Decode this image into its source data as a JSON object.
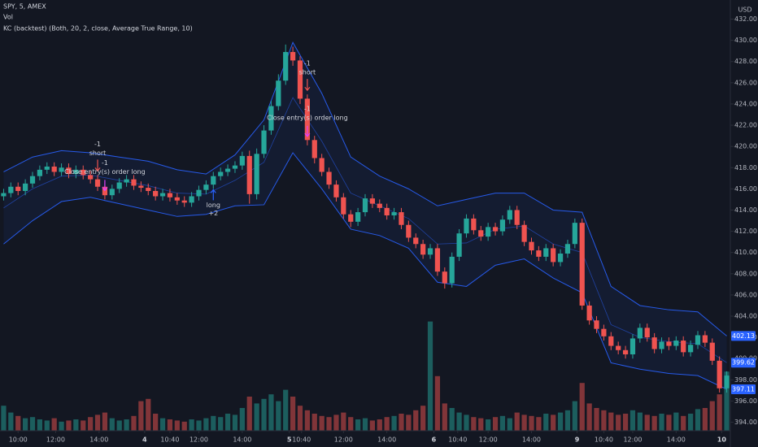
{
  "header": {
    "symbol": "SPY, 5, AMEX",
    "volume_label": "Vol",
    "indicator": "KC (backtest) (Both, 20, 2, close, Average True Range, 10)"
  },
  "chart_data": {
    "type": "candlestick",
    "currency": "USD",
    "up_color": "#26a69a",
    "down_color": "#ef5350",
    "grid": false,
    "xlim": [
      -0.5,
      100.5
    ],
    "ylim": [
      393.2,
      433.8
    ],
    "volume_lim": [
      0,
      10
    ],
    "yticks": [
      {
        "value": 394,
        "label": "394.00"
      },
      {
        "value": 396,
        "label": "396.00"
      },
      {
        "value": 398,
        "label": "398.00"
      },
      {
        "value": 400,
        "label": "400.00"
      },
      {
        "value": 402,
        "label": "402.00"
      },
      {
        "value": 404,
        "label": "404.00"
      },
      {
        "value": 406,
        "label": "406.00"
      },
      {
        "value": 408,
        "label": "408.00"
      },
      {
        "value": 410,
        "label": "410.00"
      },
      {
        "value": 412,
        "label": "412.00"
      },
      {
        "value": 414,
        "label": "414.00"
      },
      {
        "value": 416,
        "label": "416.00"
      },
      {
        "value": 418,
        "label": "418.00"
      },
      {
        "value": 420,
        "label": "420.00"
      },
      {
        "value": 422,
        "label": "422.00"
      },
      {
        "value": 424,
        "label": "424.00"
      },
      {
        "value": 426,
        "label": "426.00"
      },
      {
        "value": 428,
        "label": "428.00"
      },
      {
        "value": 430,
        "label": "430.00"
      },
      {
        "value": 432,
        "label": "432.00"
      }
    ],
    "xticks": [
      {
        "value": 2,
        "label": "10:00"
      },
      {
        "value": 7.2,
        "label": "12:00"
      },
      {
        "value": 13.2,
        "label": "14:00"
      },
      {
        "value": 19.5,
        "label": "4"
      },
      {
        "value": 23,
        "label": "10:40"
      },
      {
        "value": 27,
        "label": "12:00"
      },
      {
        "value": 33,
        "label": "14:00"
      },
      {
        "value": 39.5,
        "label": "5"
      },
      {
        "value": 41.2,
        "label": "10:40"
      },
      {
        "value": 47,
        "label": "12:00"
      },
      {
        "value": 53,
        "label": "14:00"
      },
      {
        "value": 59.5,
        "label": "6"
      },
      {
        "value": 62.8,
        "label": "10:40"
      },
      {
        "value": 67,
        "label": "12:00"
      },
      {
        "value": 73,
        "label": "14:00"
      },
      {
        "value": 79.3,
        "label": "9"
      },
      {
        "value": 83,
        "label": "10:40"
      },
      {
        "value": 87,
        "label": "12:00"
      },
      {
        "value": 93,
        "label": "14:00"
      },
      {
        "value": 99.3,
        "label": "10"
      }
    ],
    "open": [
      415.3,
      415.6,
      416.2,
      415.8,
      416.5,
      417.2,
      417.8,
      418.1,
      417.6,
      418.0,
      417.4,
      417.8,
      417.3,
      416.9,
      416.2,
      415.4,
      416.0,
      416.6,
      416.9,
      416.3,
      416.1,
      415.8,
      415.3,
      415.6,
      415.2,
      414.9,
      414.7,
      415.3,
      415.9,
      416.4,
      417.2,
      417.6,
      417.9,
      418.2,
      419.1,
      415.5,
      419.3,
      421.5,
      423.8,
      426.2,
      428.9,
      428.1,
      424.5,
      420.6,
      418.9,
      417.6,
      416.4,
      415.2,
      413.6,
      412.9,
      413.8,
      415.1,
      414.6,
      414.2,
      413.5,
      413.8,
      412.6,
      411.4,
      410.8,
      409.8,
      410.4,
      408.2,
      407.1,
      409.6,
      411.8,
      413.2,
      412.1,
      411.5,
      412.4,
      412.0,
      413.1,
      414.0,
      412.6,
      411.0,
      410.2,
      409.6,
      410.4,
      409.1,
      409.9,
      410.8,
      412.8,
      405.0,
      403.6,
      402.8,
      402.1,
      401.2,
      400.8,
      400.4,
      401.9,
      402.9,
      402.0,
      400.9,
      401.6,
      401.2,
      401.7,
      400.6,
      401.3,
      402.2,
      401.5,
      399.8,
      397.2
    ],
    "high": [
      416.0,
      416.6,
      416.6,
      416.9,
      417.6,
      418.2,
      418.5,
      418.5,
      418.4,
      418.4,
      418.2,
      418.2,
      417.7,
      417.3,
      416.6,
      416.4,
      417.0,
      417.3,
      417.3,
      416.7,
      416.5,
      416.2,
      416.0,
      416.0,
      415.6,
      415.3,
      415.7,
      416.3,
      416.8,
      417.6,
      418.0,
      418.3,
      418.6,
      419.5,
      419.6,
      419.8,
      422.0,
      424.3,
      426.8,
      429.6,
      429.4,
      428.5,
      424.9,
      421.0,
      419.3,
      418.0,
      416.8,
      415.6,
      414.0,
      414.2,
      415.5,
      415.5,
      415.0,
      414.6,
      414.2,
      414.2,
      413.0,
      411.8,
      411.2,
      410.8,
      410.8,
      408.6,
      410.0,
      412.2,
      413.6,
      413.6,
      412.5,
      412.8,
      412.8,
      413.5,
      414.4,
      414.4,
      413.0,
      411.4,
      410.6,
      410.8,
      410.8,
      410.3,
      411.2,
      413.2,
      413.2,
      405.4,
      404.0,
      403.2,
      402.5,
      401.6,
      401.2,
      402.3,
      403.3,
      403.3,
      402.4,
      402.0,
      402.0,
      402.1,
      402.1,
      401.7,
      402.6,
      402.6,
      401.9,
      400.2,
      398.8
    ],
    "low": [
      414.9,
      415.2,
      415.4,
      415.4,
      416.1,
      416.8,
      417.4,
      417.2,
      417.2,
      417.0,
      417.0,
      416.9,
      416.5,
      415.8,
      415.0,
      415.0,
      415.6,
      416.2,
      415.9,
      415.7,
      415.4,
      414.9,
      414.9,
      414.8,
      414.5,
      414.3,
      414.3,
      414.9,
      415.5,
      416.0,
      416.8,
      417.2,
      417.5,
      417.8,
      414.6,
      415.0,
      418.9,
      421.1,
      423.4,
      425.8,
      427.6,
      424.0,
      420.1,
      418.4,
      417.2,
      416.0,
      414.8,
      413.2,
      412.4,
      412.5,
      413.4,
      414.2,
      413.8,
      413.1,
      413.1,
      412.2,
      411.0,
      410.4,
      409.4,
      409.4,
      407.8,
      406.6,
      406.7,
      409.2,
      411.4,
      411.7,
      411.1,
      411.1,
      411.6,
      411.6,
      412.7,
      412.2,
      410.6,
      409.8,
      409.2,
      409.2,
      408.7,
      408.7,
      409.5,
      410.4,
      404.6,
      403.2,
      402.4,
      401.7,
      400.8,
      400.4,
      400.0,
      400.0,
      401.5,
      401.6,
      400.5,
      400.5,
      400.8,
      400.8,
      400.2,
      400.2,
      400.9,
      401.1,
      399.4,
      396.8,
      396.8
    ],
    "close": [
      415.6,
      416.2,
      415.8,
      416.5,
      417.2,
      417.8,
      418.1,
      417.6,
      418.0,
      417.4,
      417.8,
      417.3,
      416.9,
      416.2,
      415.4,
      416.0,
      416.6,
      416.9,
      416.3,
      416.1,
      415.8,
      415.3,
      415.6,
      415.2,
      414.9,
      414.7,
      415.3,
      415.9,
      416.4,
      417.2,
      417.6,
      417.9,
      418.2,
      419.1,
      415.5,
      419.3,
      421.5,
      423.8,
      426.2,
      428.9,
      428.1,
      424.5,
      420.6,
      418.9,
      417.6,
      416.4,
      415.2,
      413.6,
      412.9,
      413.8,
      415.1,
      414.6,
      414.2,
      413.5,
      413.8,
      412.6,
      411.4,
      410.8,
      409.8,
      410.4,
      408.2,
      407.1,
      409.6,
      411.8,
      413.2,
      412.1,
      411.5,
      412.4,
      412.0,
      413.1,
      414.0,
      412.6,
      411.0,
      410.2,
      409.6,
      410.4,
      409.1,
      409.9,
      410.8,
      412.8,
      405.0,
      403.6,
      402.8,
      402.1,
      401.2,
      400.8,
      400.4,
      401.9,
      402.9,
      402.0,
      400.9,
      401.6,
      401.2,
      401.7,
      400.6,
      401.3,
      402.2,
      401.5,
      399.8,
      397.2,
      398.4
    ],
    "volume": [
      2.2,
      1.6,
      1.3,
      1.1,
      1.2,
      1.0,
      0.9,
      1.1,
      0.8,
      0.9,
      1.0,
      0.9,
      1.2,
      1.4,
      1.6,
      1.1,
      0.9,
      1.0,
      1.3,
      2.6,
      2.8,
      1.5,
      1.1,
      1.0,
      0.9,
      0.8,
      1.0,
      0.9,
      1.1,
      1.3,
      1.2,
      1.5,
      1.4,
      2.0,
      3.0,
      2.4,
      2.8,
      3.2,
      2.6,
      3.6,
      3.0,
      2.2,
      1.8,
      1.5,
      1.3,
      1.2,
      1.4,
      1.6,
      1.2,
      1.0,
      1.1,
      0.9,
      1.0,
      1.2,
      1.3,
      1.5,
      1.4,
      1.8,
      2.2,
      9.6,
      4.8,
      2.4,
      2.0,
      1.6,
      1.4,
      1.2,
      1.1,
      1.0,
      1.2,
      1.3,
      1.1,
      1.6,
      1.4,
      1.3,
      1.2,
      1.5,
      1.4,
      1.6,
      1.8,
      2.6,
      4.2,
      2.4,
      2.0,
      1.8,
      1.6,
      1.4,
      1.5,
      1.8,
      1.6,
      1.4,
      1.3,
      1.5,
      1.4,
      1.6,
      1.3,
      1.5,
      1.9,
      2.0,
      2.6,
      3.2,
      5.2
    ],
    "bands": {
      "color": "#2962ff",
      "x": [
        0,
        4,
        8,
        12,
        16,
        20,
        24,
        28,
        32,
        36,
        40,
        44,
        48,
        52,
        56,
        60,
        64,
        68,
        72,
        76,
        80,
        84,
        88,
        92,
        96,
        100
      ],
      "upper": [
        417.6,
        419.0,
        419.6,
        419.4,
        419.0,
        418.6,
        417.8,
        417.4,
        419.2,
        422.5,
        429.8,
        425.0,
        419.0,
        417.2,
        416.0,
        414.4,
        415.0,
        415.6,
        415.6,
        414.0,
        413.8,
        406.8,
        405.0,
        404.6,
        404.4,
        402.13
      ],
      "basis": [
        414.2,
        416.0,
        417.2,
        417.3,
        416.8,
        416.3,
        415.6,
        415.5,
        416.8,
        418.5,
        424.6,
        420.5,
        415.6,
        414.4,
        413.2,
        410.8,
        410.9,
        412.2,
        412.5,
        410.8,
        410.0,
        403.2,
        402.0,
        401.6,
        401.4,
        399.62
      ],
      "lower": [
        410.8,
        413.0,
        414.8,
        415.2,
        414.6,
        414.0,
        413.4,
        413.6,
        414.4,
        414.5,
        419.4,
        416.0,
        412.2,
        411.6,
        410.4,
        407.2,
        406.8,
        408.8,
        409.4,
        407.6,
        406.2,
        399.6,
        399.0,
        398.6,
        398.4,
        397.11
      ]
    },
    "entries": [
      {
        "x": 13,
        "label": "short",
        "qty": -1,
        "color": "#ef5350",
        "position": "above"
      },
      {
        "x": 29,
        "label": "long",
        "qty": "+2",
        "color": "#2962ff",
        "position": "below"
      },
      {
        "x": 42,
        "label": "short",
        "qty": -1,
        "color": "#ef5350",
        "position": "above"
      }
    ],
    "exits": [
      {
        "x": 14,
        "label": "Close entry(s) order long",
        "qty": -1,
        "color": "#e040fb"
      },
      {
        "x": 42,
        "label": "Close entry(s) order long",
        "qty": -1,
        "color": "#e040fb"
      }
    ]
  }
}
